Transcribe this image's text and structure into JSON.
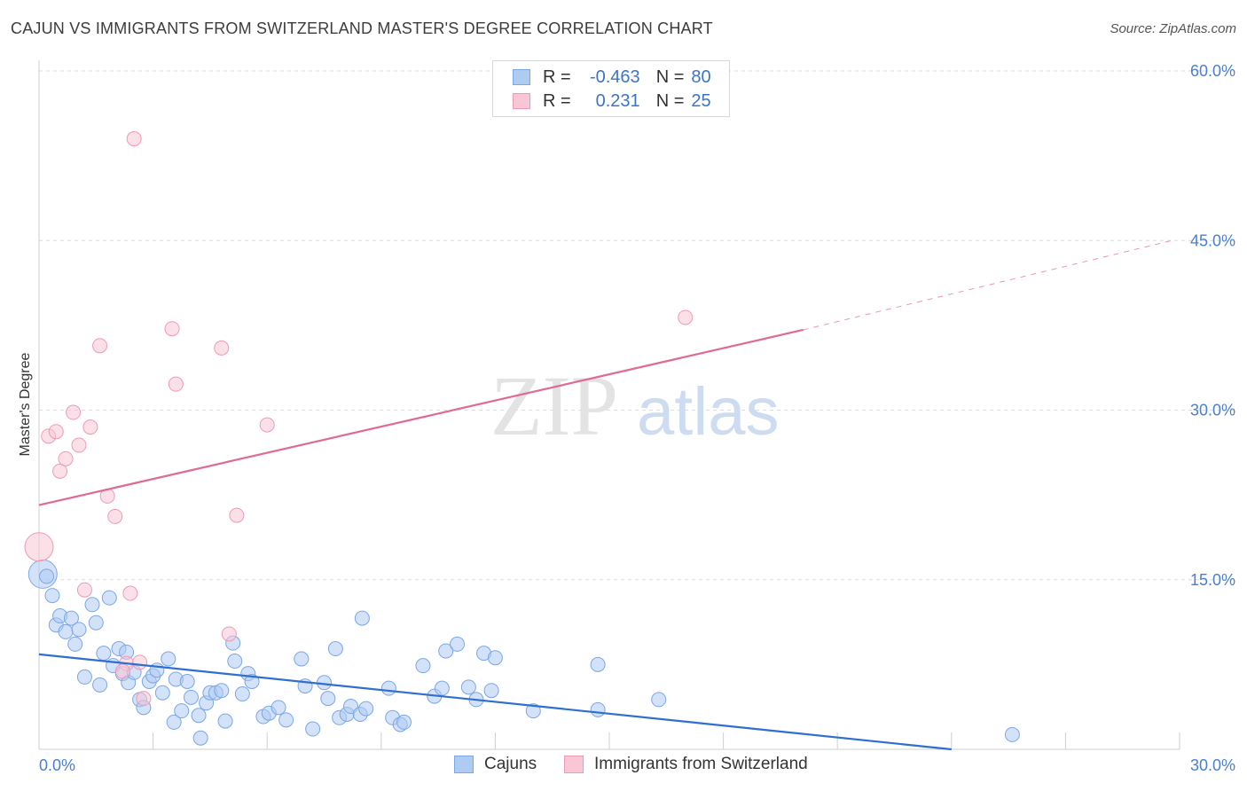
{
  "header": {
    "title": "CAJUN VS IMMIGRANTS FROM SWITZERLAND MASTER'S DEGREE CORRELATION CHART",
    "source": "Source: ZipAtlas.com"
  },
  "watermark": {
    "zip": "ZIP",
    "atlas": "atlas"
  },
  "legend": {
    "rows": [
      {
        "r_label": "R =",
        "r_value": "-0.463",
        "n_label": "N =",
        "n_value": "80",
        "color": "#aecbf2",
        "border": "#7aa7e6"
      },
      {
        "r_label": "R =",
        "r_value": "0.231",
        "n_label": "N =",
        "n_value": "25",
        "color": "#f8c6d5",
        "border": "#ee9ab4"
      }
    ]
  },
  "bottom_legend": {
    "items": [
      {
        "label": "Cajuns",
        "color": "#aecbf2",
        "border": "#7aa7e6"
      },
      {
        "label": "Immigrants from Switzerland",
        "color": "#f8c6d5",
        "border": "#ee9ab4"
      }
    ]
  },
  "chart_data": {
    "type": "scatter",
    "title": "CAJUN VS IMMIGRANTS FROM SWITZERLAND MASTER'S DEGREE CORRELATION CHART",
    "xlabel": "",
    "ylabel": "Master's Degree",
    "xlim": [
      0,
      30
    ],
    "ylim": [
      0,
      60
    ],
    "x_tick_labels": [
      {
        "value": 0,
        "label": "0.0%"
      },
      {
        "value": 30,
        "label": "30.0%"
      }
    ],
    "y_tick_labels": [
      {
        "value": 15,
        "label": "15.0%"
      },
      {
        "value": 30,
        "label": "30.0%"
      },
      {
        "value": 45,
        "label": "45.0%"
      },
      {
        "value": 60,
        "label": "60.0%"
      }
    ],
    "grid": true,
    "series": [
      {
        "name": "Cajuns",
        "color": "#aecbf2",
        "edge": "#7aa7e6",
        "line_color": "#2f6fd0",
        "trend": {
          "x0": 0,
          "y0": 8.4,
          "x1": 24.0,
          "y1": 0.0,
          "dashed_to": null
        },
        "points": [
          [
            0.1,
            15.5,
            2.0
          ],
          [
            0.2,
            15.3,
            1
          ],
          [
            0.35,
            13.6,
            1
          ],
          [
            0.45,
            11.0,
            1
          ],
          [
            0.55,
            11.8,
            1
          ],
          [
            0.7,
            10.4,
            1
          ],
          [
            0.85,
            11.6,
            1
          ],
          [
            0.95,
            9.3,
            1
          ],
          [
            1.05,
            10.6,
            1
          ],
          [
            1.2,
            6.4,
            1
          ],
          [
            1.4,
            12.8,
            1
          ],
          [
            1.5,
            11.2,
            1
          ],
          [
            1.6,
            5.7,
            1
          ],
          [
            1.7,
            8.5,
            1
          ],
          [
            1.85,
            13.4,
            1
          ],
          [
            1.95,
            7.4,
            1
          ],
          [
            2.1,
            8.9,
            1
          ],
          [
            2.2,
            6.7,
            1
          ],
          [
            2.3,
            8.6,
            1
          ],
          [
            2.35,
            5.9,
            1
          ],
          [
            2.5,
            6.8,
            1
          ],
          [
            2.65,
            4.4,
            1
          ],
          [
            2.75,
            3.7,
            1
          ],
          [
            2.9,
            6.0,
            1
          ],
          [
            3.0,
            6.5,
            1
          ],
          [
            3.1,
            7.0,
            1
          ],
          [
            3.25,
            5.0,
            1
          ],
          [
            3.4,
            8.0,
            1
          ],
          [
            3.55,
            2.4,
            1
          ],
          [
            3.6,
            6.2,
            1
          ],
          [
            3.75,
            3.4,
            1
          ],
          [
            3.9,
            6.0,
            1
          ],
          [
            4.0,
            4.6,
            1
          ],
          [
            4.2,
            3.0,
            1
          ],
          [
            4.25,
            1.0,
            1
          ],
          [
            4.4,
            4.1,
            1
          ],
          [
            4.5,
            5.0,
            1
          ],
          [
            4.65,
            5.0,
            1
          ],
          [
            4.8,
            5.2,
            1
          ],
          [
            4.9,
            2.5,
            1
          ],
          [
            5.1,
            9.4,
            1
          ],
          [
            5.15,
            7.8,
            1
          ],
          [
            5.35,
            4.9,
            1
          ],
          [
            5.5,
            6.7,
            1
          ],
          [
            5.6,
            6.0,
            1
          ],
          [
            5.9,
            2.9,
            1
          ],
          [
            6.05,
            3.2,
            1
          ],
          [
            6.3,
            3.7,
            1
          ],
          [
            6.5,
            2.6,
            1
          ],
          [
            6.9,
            8.0,
            1
          ],
          [
            7.0,
            5.6,
            1
          ],
          [
            7.2,
            1.8,
            1
          ],
          [
            7.5,
            5.9,
            1
          ],
          [
            7.6,
            4.5,
            1
          ],
          [
            7.8,
            8.9,
            1
          ],
          [
            7.9,
            2.8,
            1
          ],
          [
            8.1,
            3.1,
            1
          ],
          [
            8.2,
            3.8,
            1
          ],
          [
            8.45,
            3.1,
            1
          ],
          [
            8.5,
            11.6,
            1
          ],
          [
            8.6,
            3.6,
            1
          ],
          [
            9.2,
            5.4,
            1
          ],
          [
            9.3,
            2.8,
            1
          ],
          [
            9.5,
            2.2,
            1
          ],
          [
            9.6,
            2.4,
            1
          ],
          [
            10.1,
            7.4,
            1
          ],
          [
            10.4,
            4.7,
            1
          ],
          [
            10.6,
            5.4,
            1
          ],
          [
            10.7,
            8.7,
            1
          ],
          [
            11.0,
            9.3,
            1
          ],
          [
            11.3,
            5.5,
            1
          ],
          [
            11.5,
            4.4,
            1
          ],
          [
            11.7,
            8.5,
            1
          ],
          [
            11.9,
            5.2,
            1
          ],
          [
            12.0,
            8.1,
            1
          ],
          [
            13.0,
            3.4,
            1
          ],
          [
            14.7,
            7.5,
            1
          ],
          [
            14.7,
            3.5,
            1
          ],
          [
            16.3,
            4.4,
            1
          ],
          [
            25.6,
            1.3,
            1
          ]
        ]
      },
      {
        "name": "Immigrants from Switzerland",
        "color": "#f8c6d5",
        "edge": "#ee9ab4",
        "line_color": "#e06a93",
        "trend": {
          "x0": 0,
          "y0": 21.6,
          "x1": 20.1,
          "y1": 37.1,
          "dashed_to": [
            29.8,
            45.0
          ]
        },
        "points": [
          [
            0.0,
            17.9,
            2.0
          ],
          [
            0.25,
            27.7,
            1
          ],
          [
            0.45,
            28.1,
            1
          ],
          [
            0.55,
            24.6,
            1
          ],
          [
            0.7,
            25.7,
            1
          ],
          [
            0.9,
            29.8,
            1
          ],
          [
            1.05,
            26.9,
            1
          ],
          [
            1.2,
            14.1,
            1
          ],
          [
            1.35,
            28.5,
            1
          ],
          [
            1.6,
            35.7,
            1
          ],
          [
            1.8,
            22.4,
            1
          ],
          [
            2.0,
            20.6,
            1
          ],
          [
            2.3,
            7.6,
            1
          ],
          [
            2.4,
            13.8,
            1
          ],
          [
            2.5,
            54.0,
            1
          ],
          [
            2.65,
            7.7,
            1
          ],
          [
            2.75,
            4.5,
            1
          ],
          [
            3.5,
            37.2,
            1
          ],
          [
            3.6,
            32.3,
            1
          ],
          [
            4.8,
            35.5,
            1
          ],
          [
            5.0,
            10.2,
            1
          ],
          [
            5.2,
            20.7,
            1
          ],
          [
            6.0,
            28.7,
            1
          ],
          [
            2.2,
            6.9,
            1
          ],
          [
            17.0,
            38.2,
            1
          ]
        ]
      }
    ]
  }
}
